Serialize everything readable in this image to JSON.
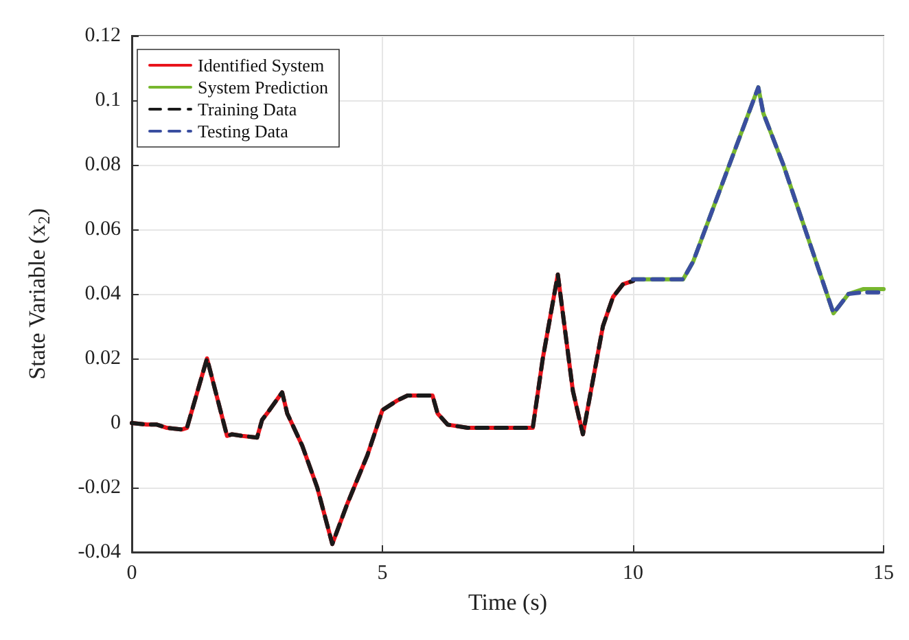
{
  "chart_data": {
    "type": "line",
    "xlabel": "Time (s)",
    "ylabel": "State Variable (x$_{2}$)",
    "xlim": [
      0,
      15
    ],
    "xticks": [
      0,
      5,
      10,
      15
    ],
    "ylim": [
      -0.04,
      0.12
    ],
    "yticks": [
      -0.04,
      -0.02,
      0,
      0.02,
      0.04,
      0.06,
      0.08,
      0.1,
      0.12
    ],
    "grid": true,
    "legend": "top left",
    "marker": "none",
    "series": [
      {
        "name": "Identified System",
        "color": "#e8141c",
        "line_style": "solid",
        "x": [
          0,
          0.3,
          0.5,
          0.7,
          1.0,
          1.1,
          1.5,
          1.9,
          2.0,
          2.2,
          2.5,
          2.6,
          2.7,
          3.0,
          3.1,
          3.4,
          3.7,
          4.0,
          4.3,
          4.7,
          5.0,
          5.3,
          5.5,
          6.0,
          6.1,
          6.3,
          6.7,
          8.0,
          8.2,
          8.5,
          8.8,
          9.0,
          9.4,
          9.6,
          9.8,
          10.0
        ],
        "values": [
          0,
          -0.0005,
          -0.0005,
          -0.0015,
          -0.002,
          -0.0015,
          0.02,
          -0.004,
          -0.0035,
          -0.004,
          -0.0045,
          0.001,
          0.003,
          0.0095,
          0.003,
          -0.007,
          -0.02,
          -0.0375,
          -0.025,
          -0.01,
          0.004,
          0.007,
          0.0085,
          0.0085,
          0.003,
          -0.0005,
          -0.0015,
          -0.0015,
          0.02,
          0.046,
          0.01,
          -0.0035,
          0.03,
          0.039,
          0.043,
          0.044
        ]
      },
      {
        "name": "System Prediction",
        "color": "#77b72e",
        "line_style": "solid",
        "x": [
          10.0,
          11.0,
          11.2,
          12.5,
          12.6,
          13.0,
          14.0,
          14.1,
          14.3,
          14.6,
          15.0
        ],
        "values": [
          0.0445,
          0.0445,
          0.05,
          0.104,
          0.096,
          0.08,
          0.034,
          0.036,
          0.04,
          0.0415,
          0.0415
        ]
      },
      {
        "name": "Training Data",
        "color": "#1a1a1a",
        "line_style": "dashed",
        "x": [
          0,
          0.3,
          0.5,
          0.7,
          1.0,
          1.1,
          1.5,
          1.9,
          2.0,
          2.2,
          2.5,
          2.6,
          2.7,
          3.0,
          3.1,
          3.4,
          3.7,
          4.0,
          4.3,
          4.7,
          5.0,
          5.3,
          5.5,
          6.0,
          6.1,
          6.3,
          6.7,
          8.0,
          8.2,
          8.5,
          8.8,
          9.0,
          9.4,
          9.6,
          9.8,
          10.0
        ],
        "values": [
          0,
          -0.0005,
          -0.0005,
          -0.0015,
          -0.002,
          -0.0015,
          0.02,
          -0.004,
          -0.0035,
          -0.004,
          -0.0045,
          0.001,
          0.003,
          0.0095,
          0.003,
          -0.007,
          -0.02,
          -0.0375,
          -0.025,
          -0.01,
          0.004,
          0.007,
          0.0085,
          0.0085,
          0.003,
          -0.0005,
          -0.0015,
          -0.0015,
          0.02,
          0.046,
          0.01,
          -0.0035,
          0.03,
          0.039,
          0.043,
          0.044
        ]
      },
      {
        "name": "Testing Data",
        "color": "#3a4ea0",
        "line_style": "dashed",
        "x": [
          10.0,
          11.0,
          11.2,
          12.5,
          12.6,
          13.0,
          14.0,
          14.1,
          14.3,
          14.6,
          15.0
        ],
        "values": [
          0.0445,
          0.0445,
          0.05,
          0.104,
          0.096,
          0.08,
          0.034,
          0.036,
          0.04,
          0.0405,
          0.0405
        ]
      }
    ]
  }
}
